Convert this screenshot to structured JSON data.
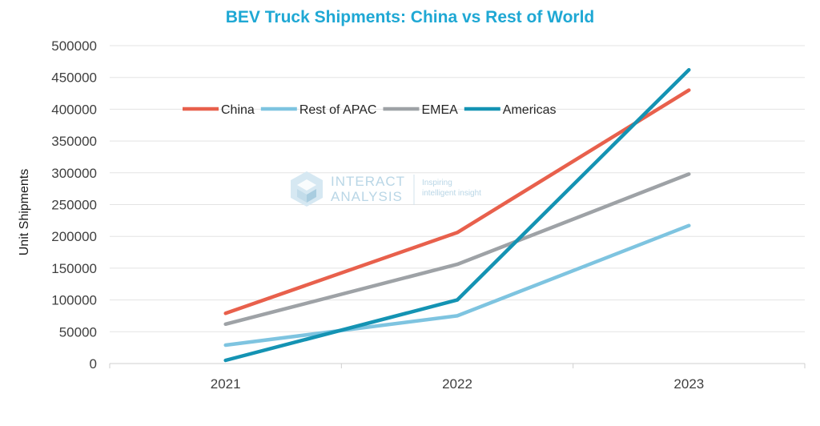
{
  "chart_data": {
    "type": "line",
    "title": "BEV Truck Shipments: China vs Rest of World",
    "xlabel": "",
    "ylabel": "Unit Shipments",
    "categories": [
      "2021",
      "2022",
      "2023"
    ],
    "ylim": [
      0,
      500000
    ],
    "yticks": [
      "0",
      "50000",
      "100000",
      "150000",
      "200000",
      "250000",
      "300000",
      "350000",
      "400000",
      "450000",
      "500000"
    ],
    "grid": true,
    "legend_position": "top-left",
    "series": [
      {
        "name": "China",
        "color": "#e8604c",
        "values": [
          79000,
          206000,
          430000
        ]
      },
      {
        "name": "Rest of APAC",
        "color": "#7ec4e0",
        "values": [
          29000,
          75000,
          217000
        ]
      },
      {
        "name": "EMEA",
        "color": "#9ea2a6",
        "values": [
          62000,
          156000,
          298000
        ]
      },
      {
        "name": "Americas",
        "color": "#1493b3",
        "values": [
          5000,
          100000,
          462000
        ]
      }
    ]
  },
  "watermark": {
    "brand_line1": "INTERACT",
    "brand_line2": "ANALYSIS",
    "tagline_line1": "Inspiring",
    "tagline_line2": "intelligent insight"
  }
}
